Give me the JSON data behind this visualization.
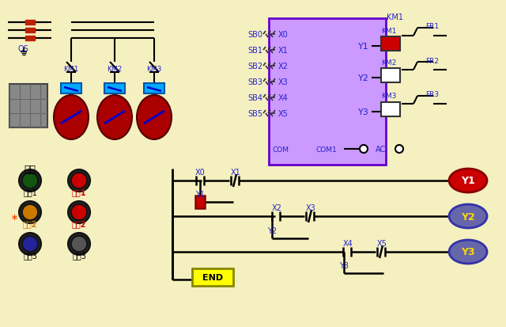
{
  "background_color": "#F5F0C0",
  "fig_width": 6.4,
  "fig_height": 4.14,
  "dpi": 100,
  "sb_labels": [
    "SB0",
    "SB1",
    "SB2",
    "SB3",
    "SB4",
    "SB5"
  ],
  "x_labels_inner": [
    "X0",
    "X1",
    "X2",
    "X3",
    "X4",
    "X5"
  ],
  "y_labels_inner": [
    "Y1",
    "Y2",
    "Y3"
  ],
  "km_labels": [
    "KM1",
    "KM2",
    "KM3"
  ],
  "fr_labels": [
    "FR1",
    "FR2",
    "FR3"
  ],
  "end_box_color": "#FFFF00",
  "wire_color": "#000000",
  "blue_text_color": "#2222CC",
  "red_text_color": "#CC0000",
  "orange_text_color": "#FF8800",
  "km_box_color_red": "#CC0000",
  "km_box_color_white": "#FFFFFF",
  "cyan_box_color": "#00AAFF",
  "motor_color": "#AA0000",
  "plc_color": "#CC99FF",
  "plc_edge_color": "#6600CC"
}
